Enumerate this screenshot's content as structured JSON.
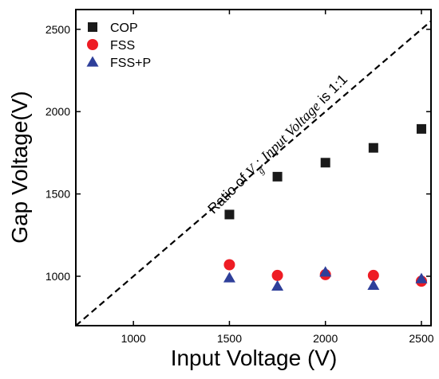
{
  "chart_data": {
    "type": "scatter",
    "title": "",
    "xlabel": "Input Voltage (V)",
    "ylabel": "Gap Voltage(V)",
    "xlim": [
      700,
      2550
    ],
    "ylim": [
      700,
      2620
    ],
    "xticks": [
      1000,
      1500,
      2000,
      2500
    ],
    "yticks": [
      1000,
      1500,
      2000,
      2500
    ],
    "legend_position": "top-left",
    "grid": false,
    "series": [
      {
        "name": "COP",
        "marker": "square",
        "color": "#1a1a1a",
        "x": [
          1500,
          1750,
          2000,
          2250,
          2500
        ],
        "y": [
          1375,
          1605,
          1690,
          1780,
          1895
        ]
      },
      {
        "name": "FSS",
        "marker": "circle",
        "color": "#ee1c24",
        "x": [
          1500,
          1750,
          2000,
          2250,
          2500
        ],
        "y": [
          1070,
          1005,
          1010,
          1005,
          970
        ]
      },
      {
        "name": "FSS+P",
        "marker": "triangle",
        "color": "#2e3f9a",
        "x": [
          1500,
          1750,
          2000,
          2250,
          2500
        ],
        "y": [
          990,
          940,
          1025,
          945,
          985
        ]
      }
    ],
    "reference_line": {
      "style": "dashed",
      "x": [
        700,
        2550
      ],
      "y": [
        700,
        2550
      ]
    },
    "annotation": {
      "prefix": "Ratio of ",
      "var": "V",
      "sub": "g",
      "mid": ": ",
      "italic": "Input Voltage",
      "suffix": " is 1:1"
    }
  }
}
